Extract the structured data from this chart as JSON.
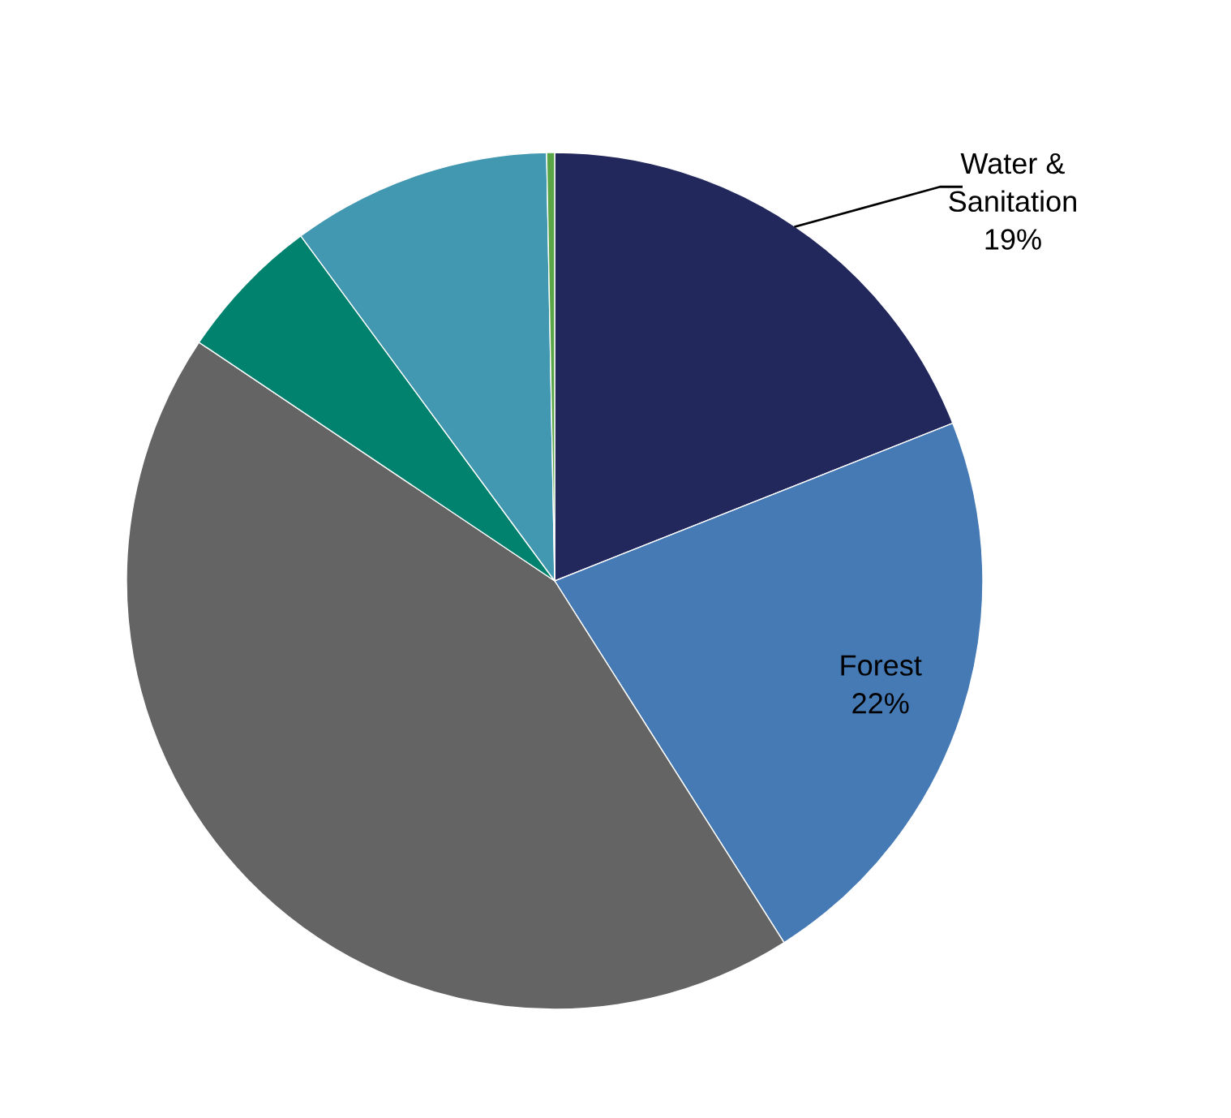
{
  "chart_data": {
    "type": "pie",
    "categories": [
      "Water & Sanitation",
      "Forest",
      null,
      null,
      null,
      null
    ],
    "values": [
      19,
      22,
      43.4,
      5.5,
      9.8,
      0.3
    ],
    "colors": [
      "#22285c",
      "#467ab4",
      "#646464",
      "#00826e",
      "#4298b0",
      "#5aa646"
    ],
    "value_labels": [
      "19%",
      "22%",
      null,
      null,
      null,
      null
    ],
    "legend": false
  }
}
